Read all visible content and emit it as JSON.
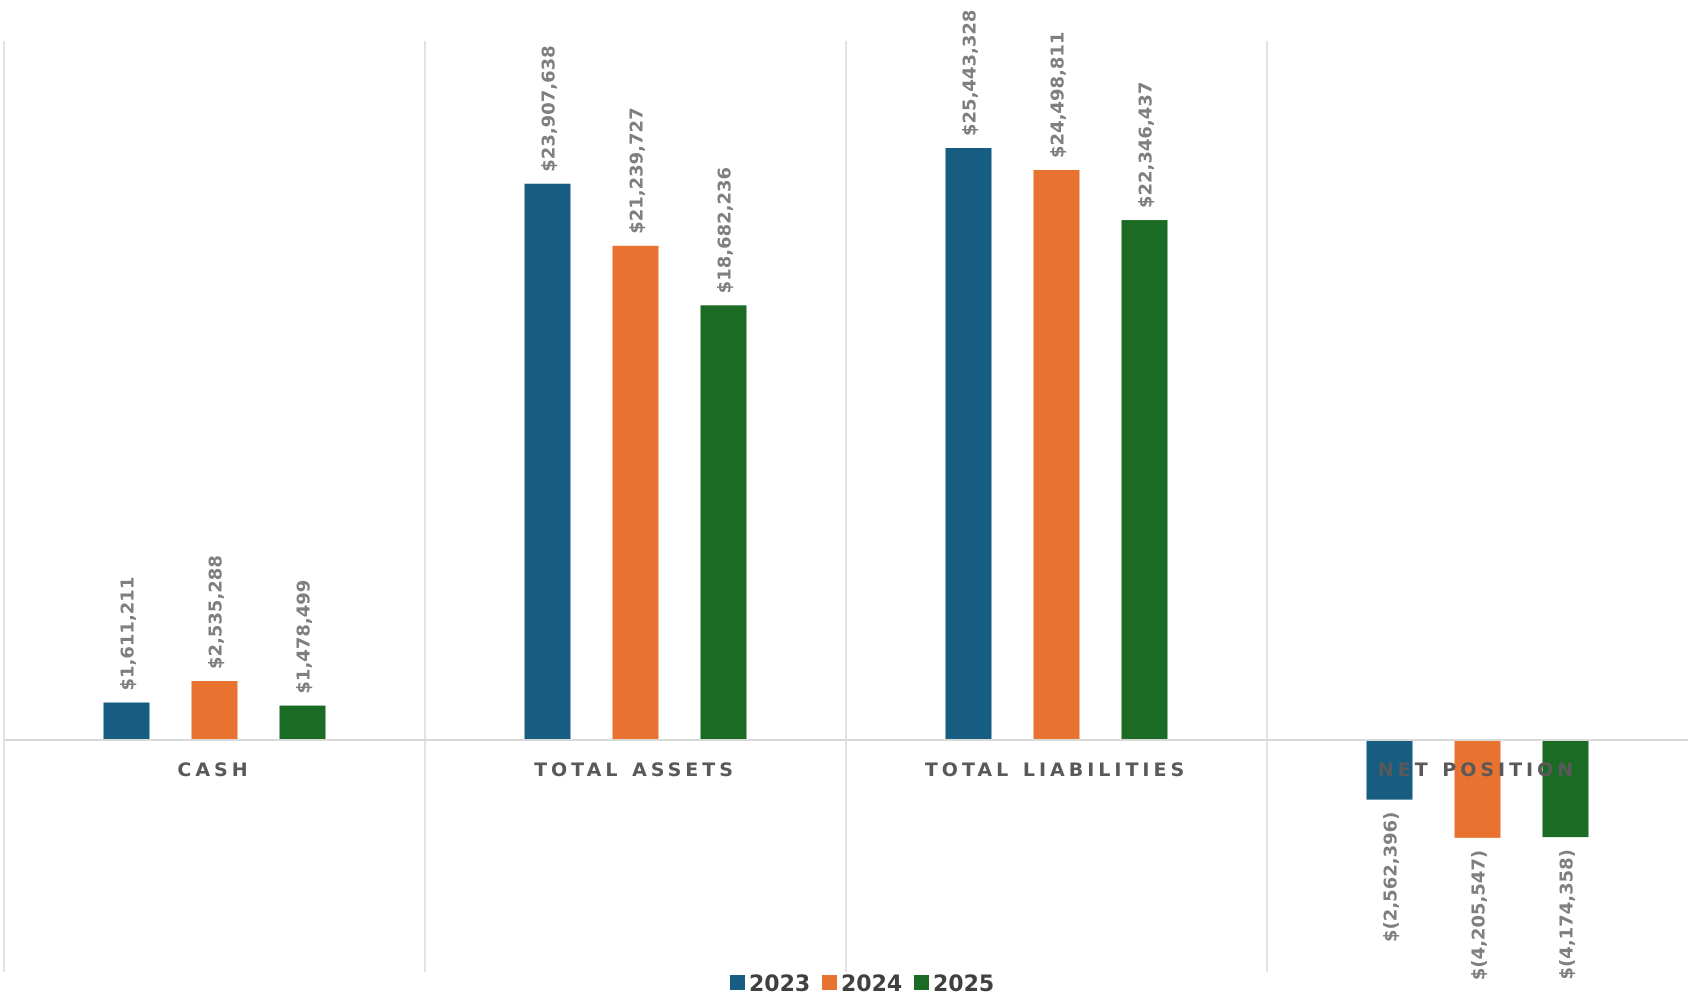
{
  "chart_data": {
    "type": "bar",
    "categories": [
      "CASH",
      "TOTAL ASSETS",
      "TOTAL LIABILITIES",
      "NET POSITION"
    ],
    "series": [
      {
        "name": "2023",
        "color": "#175d82",
        "values": [
          1611211,
          23907638,
          25443328,
          -2562396
        ],
        "labels": [
          "$1,611,211",
          "$23,907,638",
          "$25,443,328",
          "$(2,562,396)"
        ]
      },
      {
        "name": "2024",
        "color": "#e87330",
        "values": [
          2535288,
          21239727,
          24498811,
          -4205547
        ],
        "labels": [
          "$2,535,288",
          "$21,239,727",
          "$24,498,811",
          "$(4,205,547)"
        ]
      },
      {
        "name": "2025",
        "color": "#1b6b25",
        "values": [
          1478499,
          18682236,
          22346437,
          -4174358
        ],
        "labels": [
          "$1,478,499",
          "$18,682,236",
          "$22,346,437",
          "$(4,174,358)"
        ]
      }
    ],
    "title": "",
    "xlabel": "",
    "ylabel": "",
    "ylim": [
      -10000000,
      30000000
    ],
    "grid": false,
    "legend_position": "bottom"
  }
}
